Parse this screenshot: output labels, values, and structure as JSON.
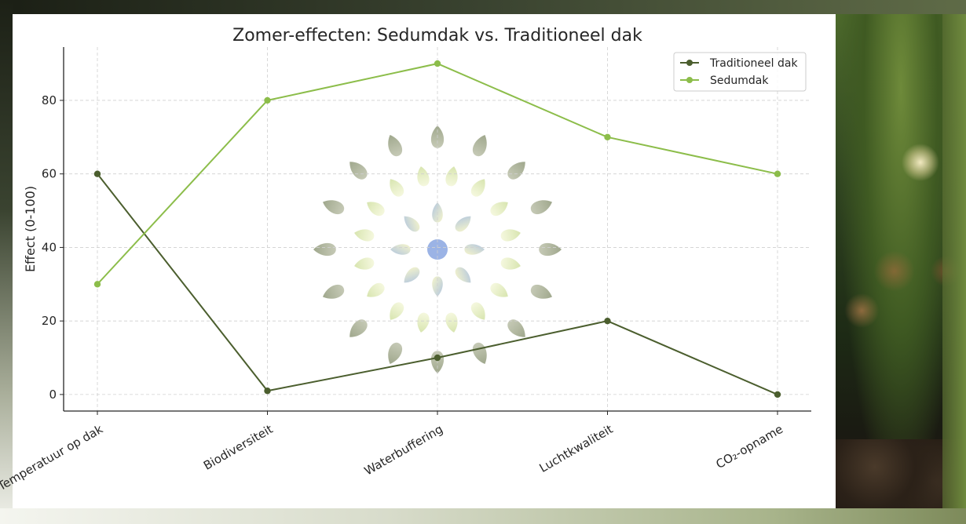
{
  "chart_data": {
    "type": "line",
    "title": "Zomer-effecten: Sedumdak vs. Traditioneel dak",
    "xlabel": "",
    "ylabel": "Effect (0-100)",
    "categories": [
      "Temperatuur op dak",
      "Biodiversiteit",
      "Waterbuffering",
      "Luchtkwaliteit",
      "CO₂-opname"
    ],
    "ylim": [
      -4.5,
      94.5
    ],
    "yticks": [
      0,
      20,
      40,
      60,
      80
    ],
    "grid": true,
    "legend_position": "top-right",
    "series": [
      {
        "name": "Traditioneel dak",
        "values": [
          60,
          1,
          10,
          20,
          0
        ],
        "color": "#4b5e2e"
      },
      {
        "name": "Sedumdak",
        "values": [
          30,
          80,
          90,
          70,
          60
        ],
        "color": "#8cbd4a"
      }
    ]
  }
}
